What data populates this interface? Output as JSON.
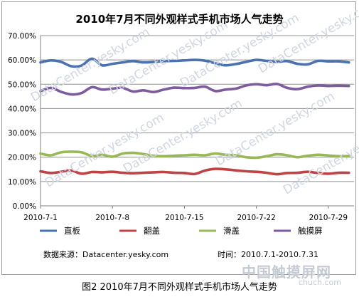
{
  "chart_data": {
    "type": "line",
    "title": "2010年7月不同外观样式手机市场人气走势",
    "ylim": [
      0,
      70
    ],
    "y_ticks": [
      "0.00%",
      "10.00%",
      "20.00%",
      "30.00%",
      "40.00%",
      "50.00%",
      "60.00%",
      "70.00%"
    ],
    "grid": true,
    "legend_position": "bottom",
    "x_labels": [
      "2010-7-1",
      "2010-7-8",
      "2010-7-15",
      "2010-7-22",
      "2010-7-29"
    ],
    "x_label_days": [
      1,
      8,
      15,
      22,
      29
    ],
    "x": [
      1,
      2,
      3,
      4,
      5,
      6,
      7,
      8,
      9,
      10,
      11,
      12,
      13,
      14,
      15,
      16,
      17,
      18,
      19,
      20,
      21,
      22,
      23,
      24,
      25,
      26,
      27,
      28,
      29,
      30,
      31
    ],
    "series": [
      {
        "name": "直板",
        "color": "#4a72b0",
        "values": [
          59.0,
          59.8,
          59.2,
          57.4,
          57.7,
          60.5,
          57.8,
          58.4,
          59.0,
          59.5,
          59.0,
          59.2,
          59.5,
          59.6,
          59.8,
          60.0,
          59.7,
          58.6,
          57.8,
          58.3,
          59.2,
          60.0,
          59.6,
          59.2,
          59.5,
          58.4,
          58.2,
          59.6,
          59.4,
          59.4,
          59.0
        ]
      },
      {
        "name": "翻盖",
        "color": "#c04343",
        "values": [
          14.2,
          13.5,
          14.0,
          14.5,
          13.2,
          13.9,
          13.8,
          14.0,
          13.6,
          13.4,
          13.6,
          13.8,
          13.9,
          13.6,
          13.5,
          13.1,
          14.5,
          15.2,
          15.0,
          14.6,
          14.2,
          14.0,
          13.6,
          13.0,
          13.5,
          13.6,
          14.0,
          13.5,
          13.2,
          13.6,
          13.6
        ]
      },
      {
        "name": "滑盖",
        "color": "#98b956",
        "values": [
          21.5,
          20.8,
          22.0,
          22.3,
          22.0,
          20.5,
          21.0,
          20.2,
          21.5,
          21.8,
          21.3,
          20.6,
          20.4,
          20.6,
          20.8,
          21.0,
          20.8,
          21.5,
          21.0,
          20.8,
          20.0,
          19.8,
          20.4,
          21.2,
          20.8,
          20.0,
          20.6,
          21.0,
          20.7,
          20.4,
          20.5
        ]
      },
      {
        "name": "触摸屏",
        "color": "#7d5b9e",
        "values": [
          47.2,
          48.5,
          46.9,
          45.8,
          46.4,
          48.8,
          47.8,
          48.2,
          48.5,
          47.0,
          47.5,
          46.8,
          47.8,
          48.6,
          48.4,
          48.5,
          49.0,
          47.2,
          47.8,
          48.2,
          49.5,
          50.0,
          49.6,
          50.1,
          48.5,
          48.0,
          49.0,
          49.5,
          49.3,
          49.4,
          49.3
        ]
      }
    ]
  },
  "source": "数据来源：Datacenter.yesky.com",
  "time_range": "时间：2010.7.1-2010.7.31",
  "caption": "图2    2010年7月不同外观样式手机市场人气走势",
  "watermark": "DataCenter.yesky.com",
  "logo": {
    "name": "中国触摸屏网",
    "url": "chuch.com"
  }
}
